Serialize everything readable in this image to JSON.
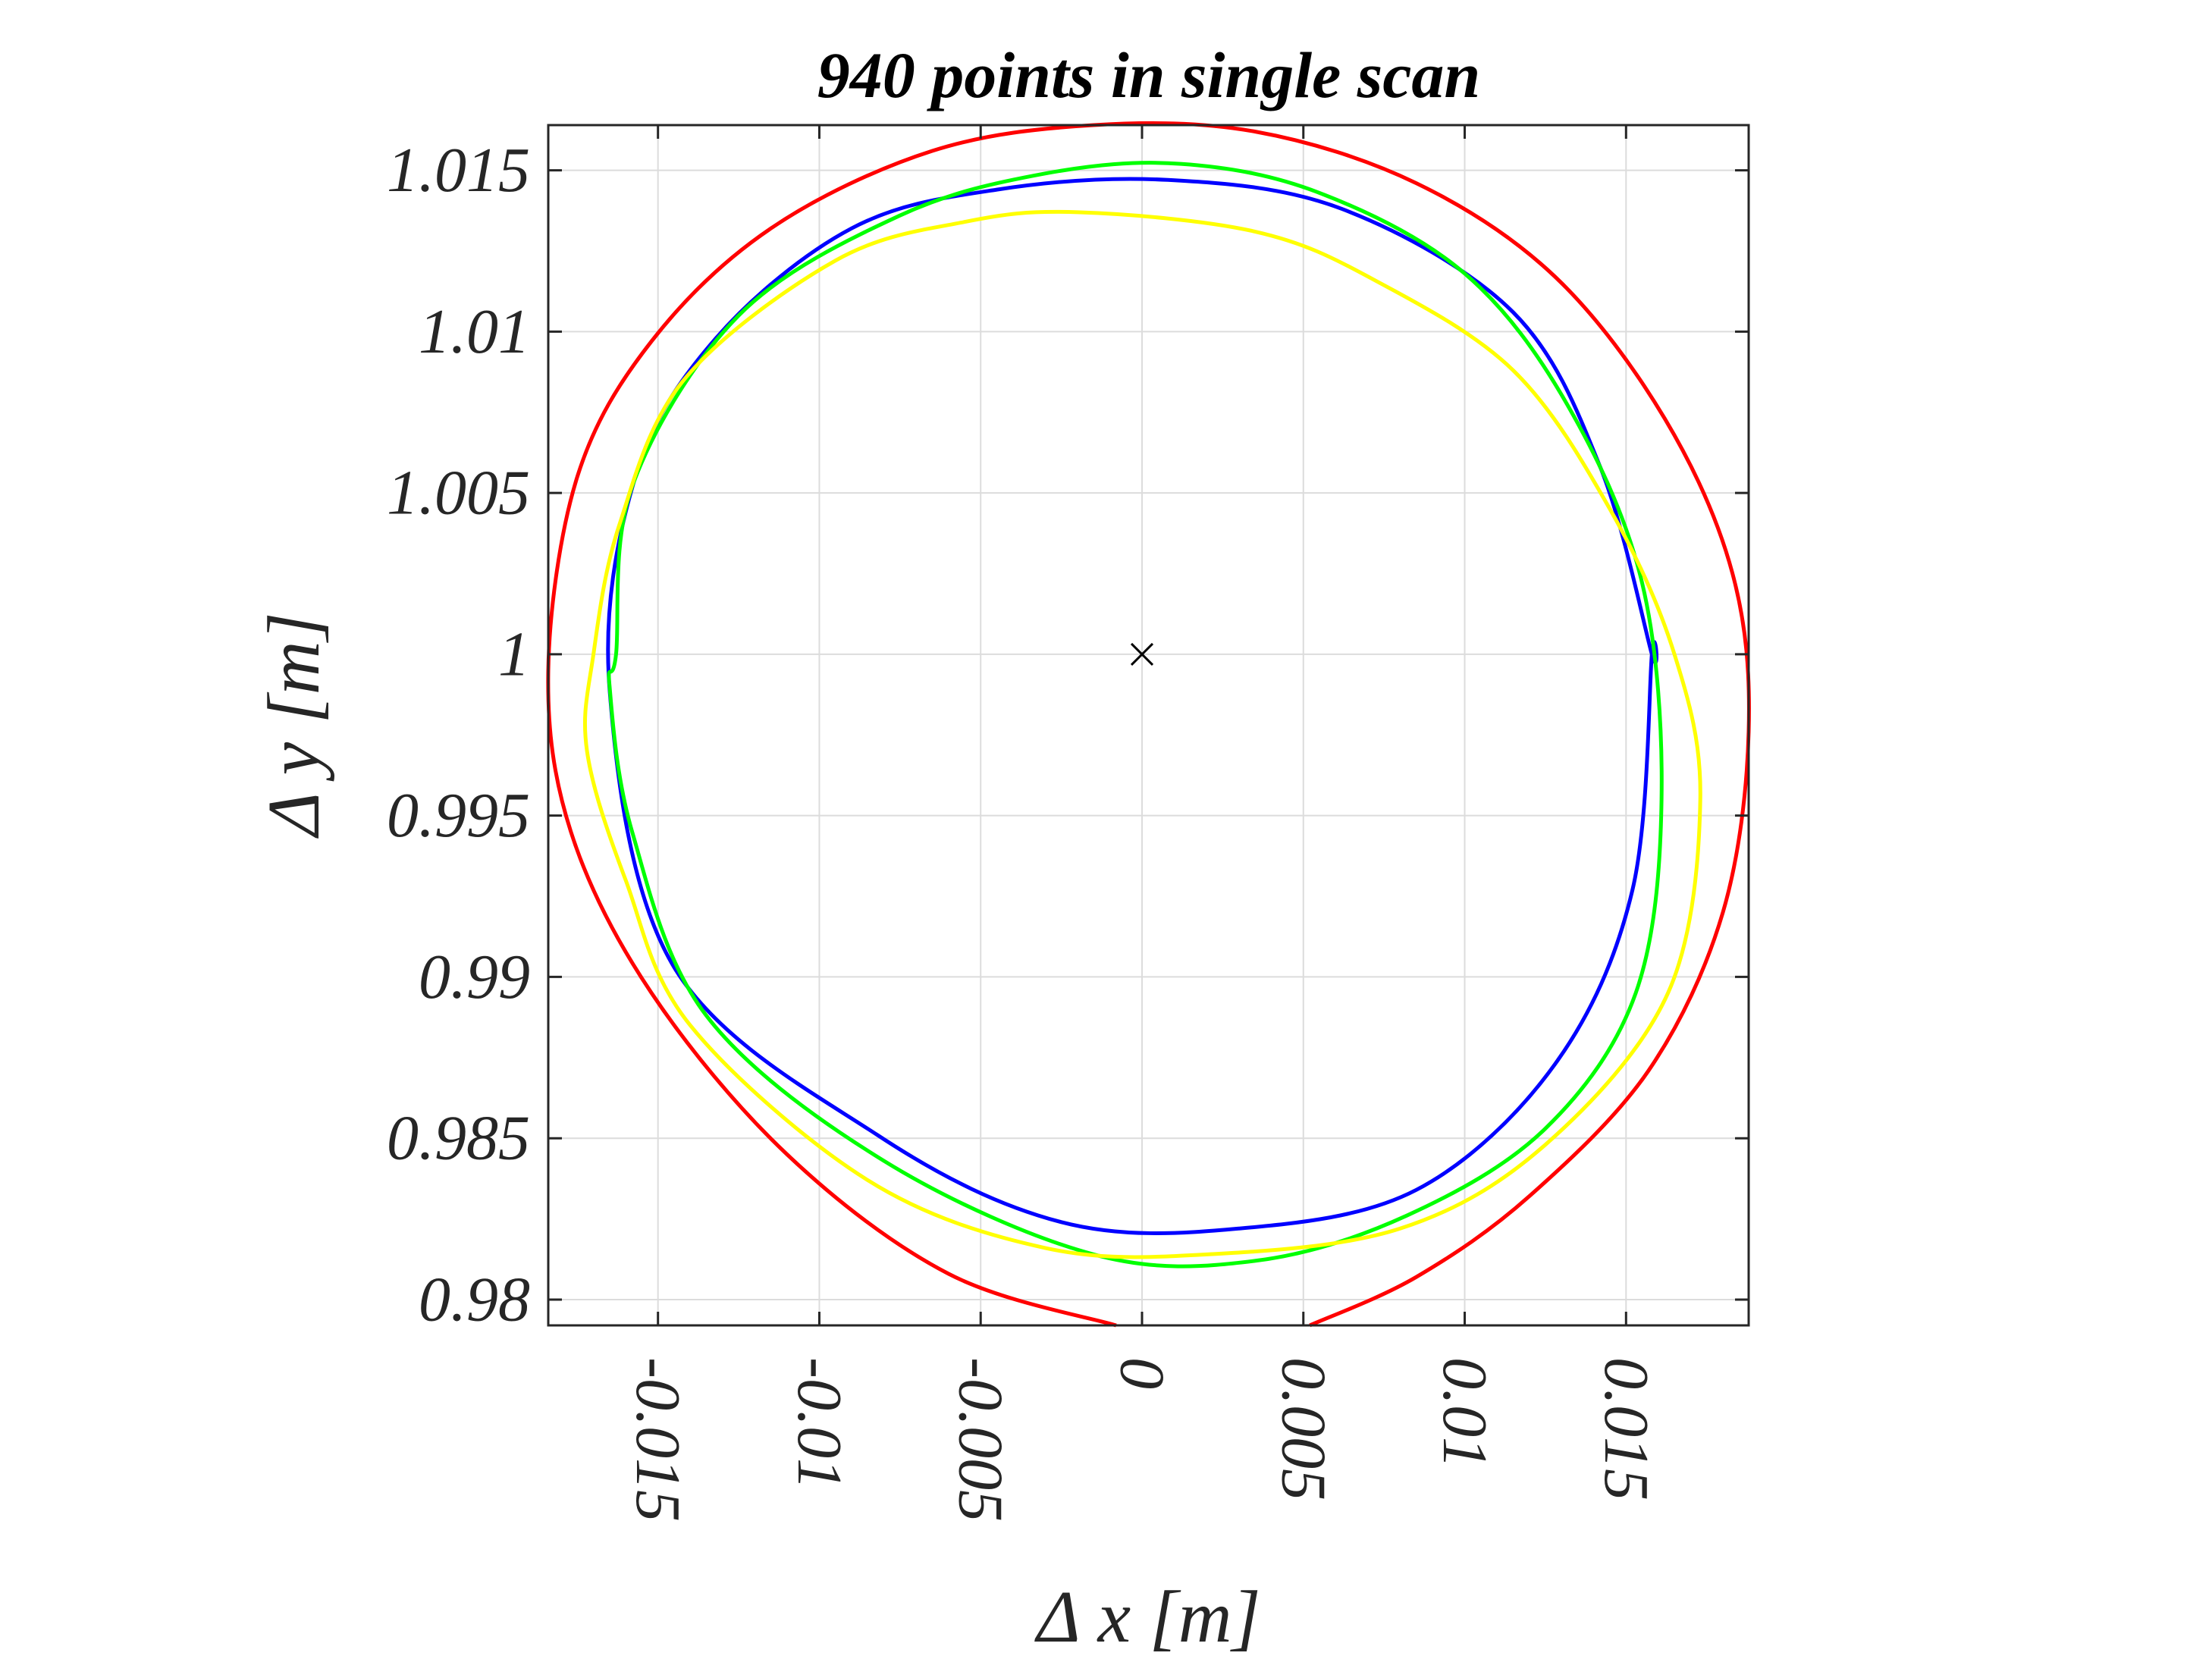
{
  "chart_data": {
    "type": "line",
    "title": "940 points in single scan",
    "xlabel": "Δ x [m]",
    "ylabel": "Δ y [m]",
    "xlim": [
      -0.0184,
      0.0188
    ],
    "ylim": [
      0.9792,
      1.0164
    ],
    "x_ticks": [
      -0.015,
      -0.01,
      -0.005,
      0,
      0.005,
      0.01,
      0.015
    ],
    "x_tick_labels": [
      "-0.015",
      "-0.01",
      "-0.005",
      "0",
      "0.005",
      "0.01",
      "0.015"
    ],
    "y_ticks": [
      0.98,
      0.985,
      0.99,
      0.995,
      1.0,
      1.005,
      1.01,
      1.015
    ],
    "y_tick_labels": [
      "0.98",
      "0.985",
      "0.99",
      "0.995",
      "1",
      "1.005",
      "1.01",
      "1.015"
    ],
    "grid": true,
    "series": [
      {
        "color": "#0000ff",
        "points": [
          [
            0.0158,
            1.0
          ],
          [
            0.0152,
            0.9927
          ],
          [
            0.0128,
            0.9873
          ],
          [
            0.0085,
            0.9834
          ],
          [
            0.003,
            0.9822
          ],
          [
            -0.0025,
            0.9824
          ],
          [
            -0.0082,
            0.9851
          ],
          [
            -0.0145,
            0.9903
          ],
          [
            -0.0165,
            0.9989
          ],
          [
            -0.0157,
            1.0055
          ],
          [
            -0.0132,
            1.0098
          ],
          [
            -0.009,
            1.0132
          ],
          [
            -0.0045,
            1.0144
          ],
          [
            0.0008,
            1.0147
          ],
          [
            0.0062,
            1.0138
          ],
          [
            0.0115,
            1.0106
          ],
          [
            0.0142,
            1.0058
          ],
          [
            0.0158,
            1.0
          ]
        ]
      },
      {
        "color": "#00ff00",
        "points": [
          [
            -0.0163,
            1.0
          ],
          [
            -0.0158,
            1.0052
          ],
          [
            -0.0125,
            1.0105
          ],
          [
            -0.0075,
            1.0136
          ],
          [
            -0.003,
            1.0149
          ],
          [
            0.0012,
            1.0152
          ],
          [
            0.0055,
            1.0143
          ],
          [
            0.01,
            1.0118
          ],
          [
            0.0132,
            1.0077
          ],
          [
            0.0155,
            1.0022
          ],
          [
            0.0161,
            0.9955
          ],
          [
            0.0153,
            0.9895
          ],
          [
            0.0125,
            0.9853
          ],
          [
            0.0082,
            0.9826
          ],
          [
            0.0035,
            0.9812
          ],
          [
            -0.0015,
            0.9814
          ],
          [
            -0.008,
            0.9843
          ],
          [
            -0.0135,
            0.9888
          ],
          [
            -0.0158,
            0.9945
          ],
          [
            -0.0165,
            0.999
          ]
        ]
      },
      {
        "color": "#ffff00",
        "points": [
          [
            -0.017,
            1.0
          ],
          [
            -0.0162,
            1.004
          ],
          [
            -0.0142,
            1.0085
          ],
          [
            -0.0095,
            1.0122
          ],
          [
            -0.0055,
            1.0134
          ],
          [
            -0.002,
            1.0137
          ],
          [
            0.0035,
            1.0131
          ],
          [
            0.0072,
            1.0116
          ],
          [
            0.0115,
            1.0088
          ],
          [
            0.0145,
            1.0045
          ],
          [
            0.0165,
            1.0
          ],
          [
            0.0173,
            0.9955
          ],
          [
            0.0163,
            0.9895
          ],
          [
            0.0125,
            0.9848
          ],
          [
            0.008,
            0.9822
          ],
          [
            0.002,
            0.9814
          ],
          [
            -0.003,
            0.9816
          ],
          [
            -0.0085,
            0.9837
          ],
          [
            -0.014,
            0.9885
          ],
          [
            -0.016,
            0.993
          ],
          [
            -0.0172,
            0.997
          ]
        ]
      },
      {
        "color": "#ff0000",
        "points": [
          [
            -0.0008,
            0.9792
          ],
          [
            -0.006,
            0.9808
          ],
          [
            -0.011,
            0.9845
          ],
          [
            -0.0152,
            0.9895
          ],
          [
            -0.0177,
            0.9945
          ],
          [
            -0.0184,
            0.9995
          ],
          [
            -0.0175,
            1.0055
          ],
          [
            -0.0152,
            1.0097
          ],
          [
            -0.0115,
            1.0132
          ],
          [
            -0.0065,
            1.0156
          ],
          [
            -0.0015,
            1.0164
          ],
          [
            0.0035,
            1.0162
          ],
          [
            0.0085,
            1.0146
          ],
          [
            0.0128,
            1.0117
          ],
          [
            0.0162,
            1.0073
          ],
          [
            0.0183,
            1.0025
          ],
          [
            0.0188,
            0.9976
          ],
          [
            0.018,
            0.992
          ],
          [
            0.0157,
            0.9871
          ],
          [
            0.012,
            0.9832
          ],
          [
            0.0085,
            0.9807
          ],
          [
            0.0052,
            0.9792
          ]
        ]
      }
    ],
    "center_marker": {
      "x": 0,
      "y": 1.0,
      "symbol": "x",
      "color": "#000000"
    }
  }
}
